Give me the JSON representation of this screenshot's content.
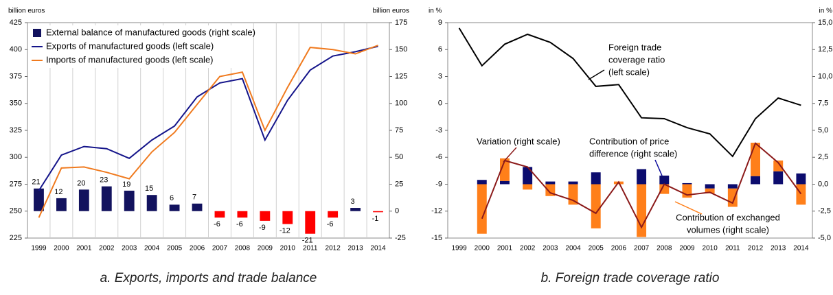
{
  "chart_data": [
    {
      "type": "combo",
      "caption": "a. Exports, imports and trade balance",
      "ylabel": "billion euros",
      "y2label": "billion euros",
      "categories": [
        "1999",
        "2000",
        "2001",
        "2002",
        "2003",
        "2004",
        "2005",
        "2006",
        "2007",
        "2008",
        "2009",
        "2010",
        "2011",
        "2012",
        "2013",
        "2014"
      ],
      "series": [
        {
          "name": "External balance of manufactured goods (right scale)",
          "type": "bar",
          "axis": "y2",
          "color": "#12125e",
          "negative_color": "#ff0000",
          "values": [
            21,
            12,
            20,
            23,
            19,
            15,
            6,
            7,
            -6,
            -6,
            -9,
            -12,
            -21,
            -6,
            3,
            -1
          ]
        },
        {
          "name": "Exports of manufactured goods (left scale)",
          "type": "line",
          "color": "#14148a",
          "values": [
            269,
            302,
            310,
            308,
            299,
            316,
            329,
            356,
            369,
            373,
            316,
            353,
            381,
            394,
            398,
            403
          ]
        },
        {
          "name": "Imports of manufactured goods (left scale)",
          "type": "line",
          "color": "#f07a1e",
          "values": [
            244,
            290,
            291,
            286,
            280,
            305,
            323,
            349,
            375,
            379,
            325,
            365,
            402,
            400,
            396,
            404
          ]
        }
      ],
      "value_labels_shown": true,
      "ylim": [
        225,
        425
      ],
      "yticks": [
        225,
        250,
        275,
        300,
        325,
        350,
        375,
        400,
        425
      ],
      "y2lim": [
        -25,
        175
      ],
      "y2ticks": [
        -25,
        0,
        25,
        50,
        75,
        100,
        125,
        150,
        175
      ],
      "grid_x": true,
      "legend": "upper left"
    },
    {
      "type": "combo",
      "caption": "b. Foreign trade coverage ratio",
      "ylabel": "in %",
      "y2label": "in %",
      "categories": [
        "1999",
        "2000",
        "2001",
        "2002",
        "2003",
        "2004",
        "2005",
        "2006",
        "2007",
        "2008",
        "2009",
        "2010",
        "2011",
        "2012",
        "2013",
        "2014"
      ],
      "stacked": true,
      "series": [
        {
          "name": "Contribution of price difference (right scale)",
          "type": "bar",
          "axis": "y2",
          "color": "#0c0c6e",
          "values": [
            null,
            0.4,
            0.3,
            1.6,
            0.25,
            0.25,
            1.1,
            0,
            1.4,
            0.8,
            0.1,
            -0.4,
            -0.4,
            0.75,
            1.2,
            1.0
          ]
        },
        {
          "name": "Contribution of exchanged volumes (right scale)",
          "type": "bar",
          "axis": "y2",
          "color": "#ff7f1a",
          "values": [
            null,
            -4.6,
            2.1,
            -0.5,
            -1.1,
            -1.9,
            -4.1,
            0.25,
            -4.9,
            -0.9,
            -1.25,
            -0.45,
            -1.7,
            3.1,
            1.0,
            -1.9
          ]
        },
        {
          "name": "Variation (right scale)",
          "type": "line",
          "axis": "y2",
          "color": "#8b1a1a",
          "values": [
            null,
            -3.2,
            2.2,
            1.6,
            -0.8,
            -1.5,
            -2.7,
            0.2,
            -4.0,
            0,
            -1.0,
            -0.75,
            -1.75,
            3.8,
            2.0,
            -0.9
          ]
        },
        {
          "name": "Foreign trade coverage ratio (left scale)",
          "type": "line",
          "color": "#000000",
          "values": [
            8.4,
            4.2,
            6.6,
            7.7,
            6.8,
            5.0,
            1.9,
            2.1,
            -1.6,
            -1.7,
            -2.7,
            -3.4,
            -5.9,
            -1.7,
            0.6,
            -0.2
          ]
        }
      ],
      "annotations": [
        {
          "lines": [
            "Foreign trade",
            "coverage ratio",
            "(left scale)"
          ],
          "color": "#000000"
        },
        {
          "lines": [
            "Variation (right scale)"
          ],
          "color": "#8b1a1a"
        },
        {
          "lines": [
            "Contribution of price",
            "difference (right scale)"
          ],
          "color": "#0c0c9e"
        },
        {
          "lines": [
            "Contribution of exchanged",
            "volumes (right scale)"
          ],
          "color": "#ff7f1a"
        }
      ],
      "ylim": [
        -15,
        9
      ],
      "yticks": [
        -15,
        -12,
        -9,
        -6,
        -3,
        0,
        3,
        6,
        9
      ],
      "y2lim": [
        -5,
        15
      ],
      "y2ticks": [
        {
          "value": -5,
          "label": "-5,0"
        },
        {
          "value": -2.5,
          "label": "-2,5"
        },
        {
          "value": 0,
          "label": "0,0"
        },
        {
          "value": 2.5,
          "label": "2,5"
        },
        {
          "value": 5,
          "label": "5,0"
        },
        {
          "value": 7.5,
          "label": "7,5"
        },
        {
          "value": 10,
          "label": "10,0"
        },
        {
          "value": 12.5,
          "label": "12,5"
        },
        {
          "value": 15,
          "label": "15,0"
        }
      ],
      "grid_x": false
    }
  ]
}
